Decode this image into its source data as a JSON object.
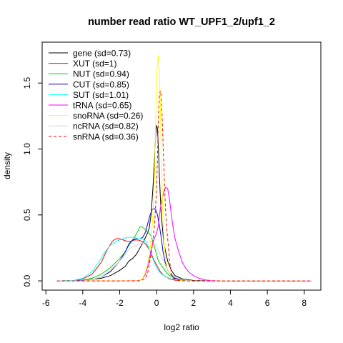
{
  "chart_data": {
    "type": "line",
    "title": "number read ratio WT_UPF1_2/upf1_2",
    "xlabel": "log2 ratio",
    "ylabel": "density",
    "xlim": [
      -6.2,
      8.9
    ],
    "ylim": [
      -0.07,
      1.81
    ],
    "x_ticks": [
      -6,
      -4,
      -2,
      0,
      2,
      4,
      6,
      8
    ],
    "x_tick_labels": [
      "-6",
      "-4",
      "-2",
      "0",
      "2",
      "4",
      "6",
      "8"
    ],
    "y_ticks": [
      0.0,
      0.5,
      1.0,
      1.5
    ],
    "y_tick_labels": [
      "0.0",
      "0.5",
      "1.0",
      "1.5"
    ],
    "grid": false,
    "legend_position": "top-left",
    "series": [
      {
        "name": "gene (sd=0.73)",
        "color": "#000000",
        "dash": "solid",
        "points": [
          [
            -5.4,
            0
          ],
          [
            -4,
            0.003
          ],
          [
            -3,
            0.02
          ],
          [
            -2.5,
            0.04
          ],
          [
            -2,
            0.08
          ],
          [
            -1.7,
            0.11
          ],
          [
            -1.5,
            0.15
          ],
          [
            -1.3,
            0.17
          ],
          [
            -1.1,
            0.2
          ],
          [
            -0.9,
            0.25
          ],
          [
            -0.7,
            0.3
          ],
          [
            -0.5,
            0.36
          ],
          [
            -0.4,
            0.4
          ],
          [
            -0.3,
            0.5
          ],
          [
            -0.2,
            0.7
          ],
          [
            -0.1,
            0.95
          ],
          [
            -0.05,
            1.1
          ],
          [
            0,
            1.18
          ],
          [
            0.05,
            1.15
          ],
          [
            0.1,
            1.0
          ],
          [
            0.15,
            0.8
          ],
          [
            0.25,
            0.5
          ],
          [
            0.4,
            0.28
          ],
          [
            0.6,
            0.15
          ],
          [
            0.8,
            0.08
          ],
          [
            1,
            0.04
          ],
          [
            1.4,
            0.015
          ],
          [
            2,
            0.003
          ],
          [
            3,
            0.001
          ],
          [
            4,
            0.0
          ],
          [
            8.4,
            0
          ]
        ]
      },
      {
        "name": "XUT (sd=1)",
        "color": "#ff0000",
        "dash": "solid",
        "points": [
          [
            -5.4,
            0
          ],
          [
            -4.5,
            0.002
          ],
          [
            -4,
            0.015
          ],
          [
            -3.5,
            0.05
          ],
          [
            -3,
            0.14
          ],
          [
            -2.7,
            0.23
          ],
          [
            -2.4,
            0.3
          ],
          [
            -2.2,
            0.32
          ],
          [
            -2,
            0.32
          ],
          [
            -1.8,
            0.31
          ],
          [
            -1.6,
            0.3
          ],
          [
            -1.4,
            0.3
          ],
          [
            -1.2,
            0.31
          ],
          [
            -1,
            0.31
          ],
          [
            -0.8,
            0.3
          ],
          [
            -0.6,
            0.28
          ],
          [
            -0.45,
            0.25
          ],
          [
            -0.3,
            0.21
          ],
          [
            -0.15,
            0.16
          ],
          [
            0,
            0.12
          ],
          [
            0.2,
            0.07
          ],
          [
            0.4,
            0.04
          ],
          [
            0.7,
            0.015
          ],
          [
            1,
            0.005
          ],
          [
            1.5,
            0.001
          ],
          [
            2,
            0
          ],
          [
            8.4,
            0
          ]
        ]
      },
      {
        "name": "NUT (sd=0.94)",
        "color": "#00cd00",
        "dash": "solid",
        "points": [
          [
            -5.4,
            0
          ],
          [
            -4,
            0.005
          ],
          [
            -3.5,
            0.02
          ],
          [
            -3,
            0.05
          ],
          [
            -2.5,
            0.1
          ],
          [
            -2,
            0.17
          ],
          [
            -1.7,
            0.22
          ],
          [
            -1.5,
            0.27
          ],
          [
            -1.2,
            0.33
          ],
          [
            -1,
            0.38
          ],
          [
            -0.9,
            0.41
          ],
          [
            -0.8,
            0.41
          ],
          [
            -0.7,
            0.4
          ],
          [
            -0.6,
            0.39
          ],
          [
            -0.5,
            0.37
          ],
          [
            -0.4,
            0.36
          ],
          [
            -0.3,
            0.34
          ],
          [
            -0.2,
            0.3
          ],
          [
            -0.1,
            0.25
          ],
          [
            0,
            0.2
          ],
          [
            0.1,
            0.15
          ],
          [
            0.2,
            0.13
          ],
          [
            0.3,
            0.11
          ],
          [
            0.5,
            0.07
          ],
          [
            0.7,
            0.04
          ],
          [
            1,
            0.015
          ],
          [
            1.3,
            0.005
          ],
          [
            2,
            0
          ],
          [
            8.4,
            0
          ]
        ]
      },
      {
        "name": "CUT (sd=0.85)",
        "color": "#0000cd",
        "dash": "solid",
        "points": [
          [
            -5.4,
            0
          ],
          [
            -4,
            0.004
          ],
          [
            -3.5,
            0.01
          ],
          [
            -3,
            0.03
          ],
          [
            -2.5,
            0.07
          ],
          [
            -2,
            0.15
          ],
          [
            -1.7,
            0.22
          ],
          [
            -1.5,
            0.28
          ],
          [
            -1.3,
            0.31
          ],
          [
            -1.1,
            0.32
          ],
          [
            -0.9,
            0.32
          ],
          [
            -0.75,
            0.33
          ],
          [
            -0.6,
            0.37
          ],
          [
            -0.45,
            0.45
          ],
          [
            -0.35,
            0.5
          ],
          [
            -0.25,
            0.54
          ],
          [
            -0.15,
            0.55
          ],
          [
            -0.05,
            0.54
          ],
          [
            0.05,
            0.5
          ],
          [
            0.15,
            0.42
          ],
          [
            0.25,
            0.33
          ],
          [
            0.35,
            0.22
          ],
          [
            0.45,
            0.15
          ],
          [
            0.6,
            0.08
          ],
          [
            0.8,
            0.04
          ],
          [
            1,
            0.02
          ],
          [
            1.3,
            0.007
          ],
          [
            2,
            0
          ],
          [
            8.4,
            0
          ]
        ]
      },
      {
        "name": "SUT (sd=1.01)",
        "color": "#00ffff",
        "dash": "solid",
        "points": [
          [
            -5.4,
            0
          ],
          [
            -4.5,
            0.004
          ],
          [
            -4,
            0.02
          ],
          [
            -3.5,
            0.07
          ],
          [
            -3.1,
            0.15
          ],
          [
            -2.8,
            0.22
          ],
          [
            -2.5,
            0.27
          ],
          [
            -2.2,
            0.3
          ],
          [
            -2,
            0.31
          ],
          [
            -1.8,
            0.32
          ],
          [
            -1.6,
            0.33
          ],
          [
            -1.4,
            0.33
          ],
          [
            -1.2,
            0.33
          ],
          [
            -1,
            0.32
          ],
          [
            -0.8,
            0.32
          ],
          [
            -0.6,
            0.3
          ],
          [
            -0.45,
            0.26
          ],
          [
            -0.3,
            0.2
          ],
          [
            -0.15,
            0.15
          ],
          [
            0,
            0.1
          ],
          [
            0.2,
            0.06
          ],
          [
            0.5,
            0.03
          ],
          [
            0.8,
            0.015
          ],
          [
            1.2,
            0.005
          ],
          [
            2,
            0
          ],
          [
            8.4,
            0
          ]
        ]
      },
      {
        "name": "tRNA (sd=0.65)",
        "color": "#ff00ff",
        "dash": "solid",
        "points": [
          [
            -5.4,
            0
          ],
          [
            -2,
            0
          ],
          [
            -1,
            0.002
          ],
          [
            -0.8,
            0.01
          ],
          [
            -0.6,
            0.05
          ],
          [
            -0.5,
            0.1
          ],
          [
            -0.4,
            0.16
          ],
          [
            -0.3,
            0.23
          ],
          [
            -0.2,
            0.29
          ],
          [
            -0.1,
            0.33
          ],
          [
            0,
            0.36
          ],
          [
            0.1,
            0.42
          ],
          [
            0.2,
            0.55
          ],
          [
            0.3,
            0.62
          ],
          [
            0.4,
            0.68
          ],
          [
            0.5,
            0.71
          ],
          [
            0.6,
            0.7
          ],
          [
            0.7,
            0.62
          ],
          [
            0.8,
            0.5
          ],
          [
            0.9,
            0.4
          ],
          [
            1,
            0.32
          ],
          [
            1.2,
            0.22
          ],
          [
            1.4,
            0.14
          ],
          [
            1.6,
            0.09
          ],
          [
            1.8,
            0.06
          ],
          [
            2,
            0.04
          ],
          [
            2.3,
            0.02
          ],
          [
            2.6,
            0.008
          ],
          [
            3,
            0.002
          ],
          [
            3.5,
            0
          ],
          [
            8.4,
            0
          ]
        ]
      },
      {
        "name": "snoRNA (sd=0.26)",
        "color": "#ffff00",
        "dash": "solid",
        "points": [
          [
            -5.4,
            0
          ],
          [
            -1,
            0
          ],
          [
            -0.8,
            0.01
          ],
          [
            -0.65,
            0.05
          ],
          [
            -0.5,
            0.12
          ],
          [
            -0.4,
            0.2
          ],
          [
            -0.3,
            0.3
          ],
          [
            -0.2,
            0.5
          ],
          [
            -0.1,
            0.85
          ],
          [
            -0.05,
            1.2
          ],
          [
            0,
            1.55
          ],
          [
            0.05,
            1.65
          ],
          [
            0.1,
            1.71
          ],
          [
            0.15,
            1.6
          ],
          [
            0.2,
            1.35
          ],
          [
            0.25,
            1.0
          ],
          [
            0.3,
            0.7
          ],
          [
            0.35,
            0.45
          ],
          [
            0.4,
            0.3
          ],
          [
            0.5,
            0.15
          ],
          [
            0.6,
            0.08
          ],
          [
            0.8,
            0.03
          ],
          [
            1,
            0.01
          ],
          [
            1.5,
            0
          ],
          [
            8.4,
            0
          ]
        ]
      },
      {
        "name": "ncRNA (sd=0.82)",
        "color": "#d3d3d3",
        "dash": "solid",
        "points": [
          [
            -5.4,
            0
          ],
          [
            -4,
            0.002
          ],
          [
            -3.5,
            0.01
          ],
          [
            -3,
            0.03
          ],
          [
            -2.5,
            0.08
          ],
          [
            -2,
            0.15
          ],
          [
            -1.7,
            0.2
          ],
          [
            -1.5,
            0.24
          ],
          [
            -1.3,
            0.26
          ],
          [
            -1.1,
            0.27
          ],
          [
            -0.9,
            0.28
          ],
          [
            -0.7,
            0.29
          ],
          [
            -0.5,
            0.3
          ],
          [
            -0.3,
            0.3
          ],
          [
            -0.1,
            0.28
          ],
          [
            0.1,
            0.23
          ],
          [
            0.3,
            0.17
          ],
          [
            0.5,
            0.11
          ],
          [
            0.7,
            0.06
          ],
          [
            1,
            0.03
          ],
          [
            1.4,
            0.01
          ],
          [
            2,
            0
          ],
          [
            8.4,
            0
          ]
        ]
      },
      {
        "name": "snRNA (sd=0.36)",
        "color": "#ff0000",
        "dash": "dashed",
        "points": [
          [
            -5.4,
            0
          ],
          [
            -1,
            0
          ],
          [
            -0.8,
            0.005
          ],
          [
            -0.6,
            0.02
          ],
          [
            -0.5,
            0.05
          ],
          [
            -0.4,
            0.12
          ],
          [
            -0.3,
            0.2
          ],
          [
            -0.2,
            0.3
          ],
          [
            -0.1,
            0.45
          ],
          [
            0,
            0.7
          ],
          [
            0.05,
            0.95
          ],
          [
            0.1,
            1.25
          ],
          [
            0.15,
            1.4
          ],
          [
            0.2,
            1.44
          ],
          [
            0.25,
            1.4
          ],
          [
            0.3,
            1.25
          ],
          [
            0.35,
            1.05
          ],
          [
            0.4,
            0.85
          ],
          [
            0.45,
            0.65
          ],
          [
            0.5,
            0.5
          ],
          [
            0.55,
            0.4
          ],
          [
            0.6,
            0.32
          ],
          [
            0.65,
            0.25
          ],
          [
            0.7,
            0.15
          ],
          [
            0.8,
            0.06
          ],
          [
            0.9,
            0.02
          ],
          [
            1.1,
            0.005
          ],
          [
            1.5,
            0
          ],
          [
            8.4,
            0
          ]
        ]
      }
    ]
  }
}
